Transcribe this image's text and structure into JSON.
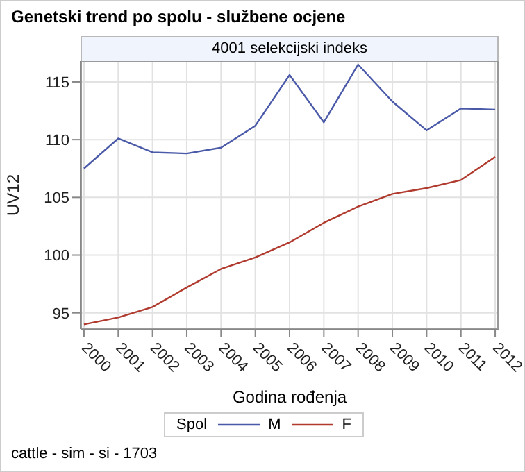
{
  "chart_data": {
    "type": "line",
    "title": "Genetski trend po spolu - službene ocjene",
    "subtitle": "4001 selekcijski indeks",
    "xlabel": "Godina rođenja",
    "ylabel": "UV12",
    "legend_title": "Spol",
    "annotations": [
      "cattle - sim - si - 1703"
    ],
    "x": [
      2000,
      2001,
      2002,
      2003,
      2004,
      2005,
      2006,
      2007,
      2008,
      2009,
      2010,
      2011,
      2012
    ],
    "series": [
      {
        "name": "M",
        "color": "#4a5aa8",
        "values": [
          107.5,
          110.1,
          108.9,
          108.8,
          109.3,
          111.2,
          115.6,
          111.5,
          116.5,
          113.3,
          110.8,
          112.7,
          112.6
        ]
      },
      {
        "name": "F",
        "color": "#b03a2e",
        "values": [
          94.0,
          94.6,
          95.5,
          97.2,
          98.8,
          99.8,
          101.1,
          102.8,
          104.2,
          105.3,
          105.8,
          106.5,
          108.5
        ]
      }
    ],
    "xlim": [
      1999.9,
      2012.1
    ],
    "xticks": [
      2000,
      2001,
      2002,
      2003,
      2004,
      2005,
      2006,
      2007,
      2008,
      2009,
      2010,
      2011,
      2012
    ],
    "ylim": [
      93.6,
      116.8
    ],
    "yticks": [
      95,
      100,
      105,
      110,
      115
    ],
    "grid": true,
    "legend": "bottom",
    "marker": "none",
    "line_style": "solid"
  }
}
